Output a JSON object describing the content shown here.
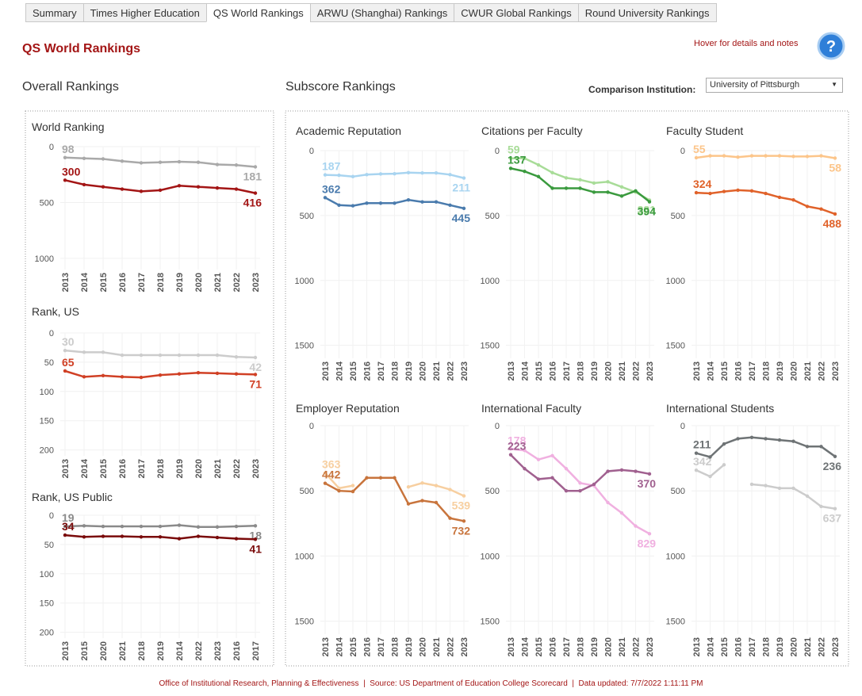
{
  "tabs": [
    "Summary",
    "Times Higher Education",
    "QS World Rankings",
    "ARWU (Shanghai) Rankings",
    "CWUR Global Rankings",
    "Round University Rankings"
  ],
  "header": {
    "title": "QS World Rankings",
    "hint": "Hover for details and notes"
  },
  "sections": {
    "overall": "Overall Rankings",
    "subscore": "Subscore Rankings"
  },
  "comparison": {
    "label": "Comparison Institution:",
    "value": "University of Pittsburgh"
  },
  "footer": "Office of Institutional Research, Planning & Effectiveness  |  Source: US Department of Education College Scorecard  |  Data updated: 7/7/2022 1:11:11 PM",
  "chart_data": [
    {
      "type": "line",
      "title": "World Ranking",
      "categories": [
        "2013",
        "2014",
        "2015",
        "2016",
        "2017",
        "2018",
        "2019",
        "2020",
        "2021",
        "2022",
        "2023"
      ],
      "series": [
        {
          "color": "#a9a9a9",
          "values": [
            98,
            105,
            110,
            130,
            145,
            140,
            135,
            140,
            160,
            165,
            181
          ]
        },
        {
          "color": "#a31515",
          "values": [
            300,
            340,
            360,
            380,
            400,
            390,
            350,
            360,
            370,
            380,
            416
          ]
        }
      ],
      "ylim": [
        0,
        1100
      ],
      "yticks": [
        0,
        500,
        1000
      ],
      "reversed": true,
      "grid": true
    },
    {
      "type": "line",
      "title": "Rank, US",
      "categories": [
        "2013",
        "2014",
        "2015",
        "2016",
        "2017",
        "2018",
        "2019",
        "2020",
        "2021",
        "2022",
        "2023"
      ],
      "series": [
        {
          "color": "#cccccc",
          "values": [
            30,
            33,
            33,
            38,
            38,
            38,
            38,
            38,
            38,
            41,
            42
          ]
        },
        {
          "color": "#d04025",
          "values": [
            65,
            75,
            73,
            75,
            76,
            72,
            70,
            68,
            69,
            70,
            71
          ]
        }
      ],
      "ylim": [
        0,
        210
      ],
      "yticks": [
        0,
        50,
        100,
        150,
        200
      ],
      "reversed": true,
      "grid": true
    },
    {
      "type": "line",
      "title": "Rank, US Public",
      "categories": [
        "2013",
        "2015",
        "2020",
        "2021",
        "2018",
        "2019",
        "2014",
        "2022",
        "2023",
        "2016",
        "2017"
      ],
      "series": [
        {
          "color": "#8a8a8a",
          "values": [
            19,
            18,
            19,
            19,
            19,
            19,
            17,
            20,
            20,
            19,
            18
          ]
        },
        {
          "color": "#7a0a0a",
          "values": [
            34,
            37,
            36,
            36,
            37,
            37,
            40,
            36,
            38,
            40,
            41
          ]
        }
      ],
      "ylim": [
        0,
        210
      ],
      "yticks": [
        0,
        50,
        100,
        150,
        200
      ],
      "reversed": true,
      "grid": true
    },
    {
      "type": "line",
      "title": "Academic Reputation",
      "categories": [
        "2013",
        "2014",
        "2015",
        "2016",
        "2017",
        "2018",
        "2019",
        "2020",
        "2021",
        "2022",
        "2023"
      ],
      "series": [
        {
          "color": "#a8d4f0",
          "values": [
            187,
            190,
            200,
            185,
            180,
            178,
            170,
            172,
            172,
            185,
            211
          ]
        },
        {
          "color": "#4a7bad",
          "values": [
            362,
            420,
            425,
            405,
            405,
            405,
            380,
            395,
            395,
            420,
            445
          ]
        }
      ],
      "ylim": [
        0,
        1600
      ],
      "yticks": [
        0,
        500,
        1000,
        1500
      ],
      "reversed": true,
      "grid": true
    },
    {
      "type": "line",
      "title": "Citations per Faculty",
      "categories": [
        "2013",
        "2014",
        "2015",
        "2016",
        "2017",
        "2018",
        "2019",
        "2020",
        "2021",
        "2022",
        "2023"
      ],
      "series": [
        {
          "color": "#a8dc98",
          "values": [
            59,
            60,
            110,
            170,
            210,
            225,
            250,
            240,
            280,
            320,
            381
          ]
        },
        {
          "color": "#3a9a3e",
          "values": [
            137,
            160,
            200,
            290,
            290,
            290,
            320,
            320,
            350,
            310,
            394
          ]
        }
      ],
      "ylim": [
        0,
        1600
      ],
      "yticks": [
        0,
        500,
        1000,
        1500
      ],
      "reversed": true,
      "grid": true
    },
    {
      "type": "line",
      "title": "Faculty Student",
      "categories": [
        "2013",
        "2014",
        "2015",
        "2016",
        "2017",
        "2018",
        "2019",
        "2020",
        "2021",
        "2022",
        "2023"
      ],
      "series": [
        {
          "color": "#fcc58a",
          "values": [
            55,
            40,
            40,
            50,
            40,
            40,
            40,
            45,
            45,
            40,
            58
          ]
        },
        {
          "color": "#e0622a",
          "values": [
            324,
            330,
            315,
            305,
            310,
            330,
            360,
            380,
            430,
            450,
            488
          ]
        }
      ],
      "ylim": [
        0,
        1600
      ],
      "yticks": [
        0,
        500,
        1000,
        1500
      ],
      "reversed": true,
      "grid": true
    },
    {
      "type": "line",
      "title": "Employer Reputation",
      "categories": [
        "2013",
        "2014",
        "2015",
        "2016",
        "2017",
        "2018",
        "2019",
        "2020",
        "2021",
        "2022",
        "2023"
      ],
      "series": [
        {
          "color": "#f7cfa0",
          "values": [
            363,
            480,
            460,
            null,
            null,
            null,
            470,
            440,
            460,
            490,
            539
          ]
        },
        {
          "color": "#c8743c",
          "values": [
            442,
            500,
            505,
            400,
            400,
            400,
            600,
            575,
            590,
            710,
            732
          ]
        }
      ],
      "ylim": [
        0,
        1600
      ],
      "yticks": [
        0,
        500,
        1000,
        1500
      ],
      "reversed": true,
      "grid": true
    },
    {
      "type": "line",
      "title": "International Faculty",
      "categories": [
        "2013",
        "2014",
        "2015",
        "2016",
        "2017",
        "2018",
        "2019",
        "2020",
        "2021",
        "2022",
        "2023"
      ],
      "series": [
        {
          "color": "#f0b0e0",
          "values": [
            178,
            190,
            260,
            230,
            330,
            440,
            460,
            590,
            670,
            770,
            829
          ]
        },
        {
          "color": "#a0608f",
          "values": [
            223,
            330,
            410,
            400,
            500,
            500,
            450,
            350,
            340,
            350,
            370
          ]
        }
      ],
      "ylim": [
        0,
        1600
      ],
      "yticks": [
        0,
        500,
        1000,
        1500
      ],
      "reversed": true,
      "grid": true
    },
    {
      "type": "line",
      "title": "International Students",
      "categories": [
        "2013",
        "2014",
        "2015",
        "2016",
        "2017",
        "2018",
        "2019",
        "2020",
        "2021",
        "2022",
        "2023"
      ],
      "series": [
        {
          "color": "#cccccc",
          "values": [
            342,
            390,
            300,
            null,
            450,
            460,
            480,
            480,
            540,
            620,
            637
          ]
        },
        {
          "color": "#6e7375",
          "values": [
            211,
            240,
            140,
            100,
            90,
            100,
            110,
            120,
            160,
            160,
            236
          ]
        }
      ],
      "ylim": [
        0,
        1600
      ],
      "yticks": [
        0,
        500,
        1000,
        1500
      ],
      "reversed": true,
      "grid": true
    }
  ]
}
